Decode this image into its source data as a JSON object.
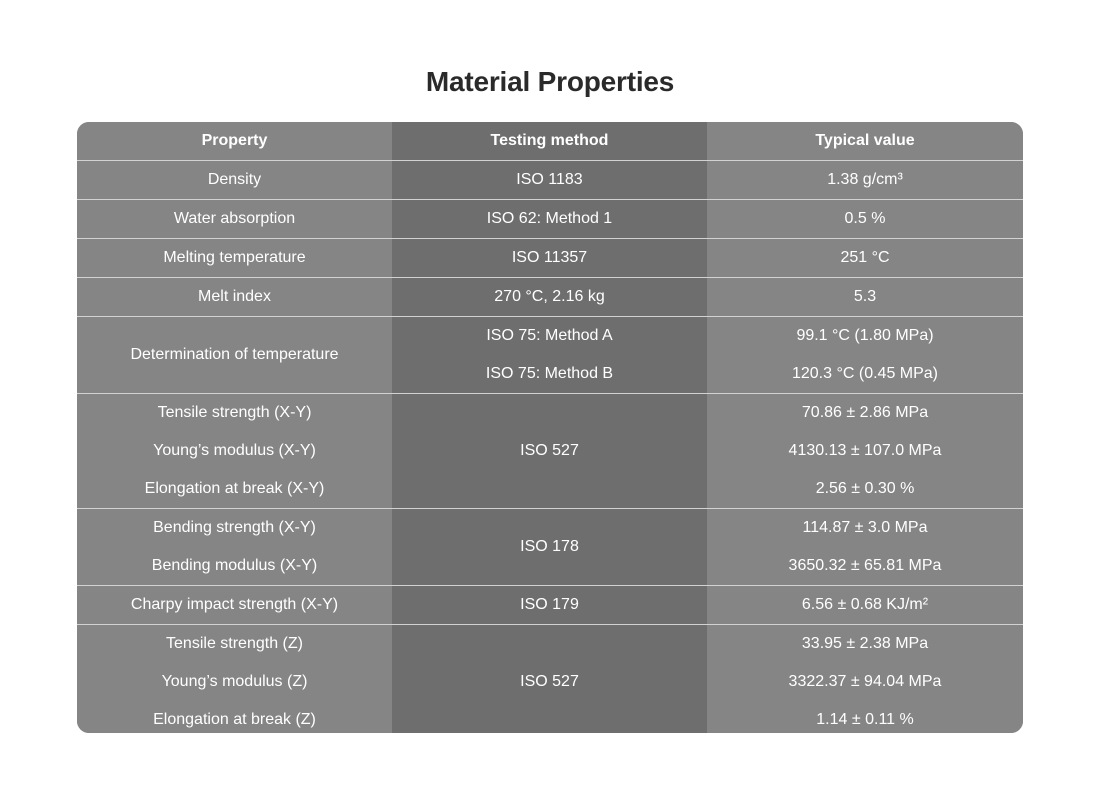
{
  "title": "Material Properties",
  "headers": {
    "property": "Property",
    "method": "Testing method",
    "value": "Typical value"
  },
  "rows": {
    "density": {
      "property": "Density",
      "method": "ISO 1183",
      "value": "1.38 g/cm³"
    },
    "water_absorption": {
      "property": "Water absorption",
      "method": "ISO 62: Method 1",
      "value": "0.5 %"
    },
    "melting_temperature": {
      "property": "Melting temperature",
      "method": "ISO 11357",
      "value": "251 °C"
    },
    "melt_index": {
      "property": "Melt index",
      "method": "270 °C, 2.16 kg",
      "value": "5.3"
    },
    "determination_temperature": {
      "property": "Determination of temperature",
      "method_a": "ISO 75: Method A",
      "value_a": "99.1 °C (1.80 MPa)",
      "method_b": "ISO 75: Method B",
      "value_b": "120.3 °C (0.45 MPa)"
    },
    "iso527_xy": {
      "method": "ISO 527",
      "tensile_property": "Tensile strength (X-Y)",
      "tensile_value": "70.86 ± 2.86 MPa",
      "youngs_property": "Young’s modulus (X-Y)",
      "youngs_value": "4130.13 ± 107.0 MPa",
      "elongation_property": "Elongation at break (X-Y)",
      "elongation_value": "2.56 ± 0.30 %"
    },
    "iso178": {
      "method": "ISO 178",
      "bending_strength_property": "Bending strength (X-Y)",
      "bending_strength_value": "114.87 ± 3.0 MPa",
      "bending_modulus_property": "Bending modulus (X-Y)",
      "bending_modulus_value": "3650.32 ± 65.81 MPa"
    },
    "charpy": {
      "property": "Charpy impact strength (X-Y)",
      "method": "ISO 179",
      "value": "6.56 ± 0.68 KJ/m²"
    },
    "iso527_z": {
      "method": "ISO 527",
      "tensile_property": "Tensile strength (Z)",
      "tensile_value": "33.95 ± 2.38 MPa",
      "youngs_property": "Young’s modulus (Z)",
      "youngs_value": "3322.37 ± 94.04 MPa",
      "elongation_property": "Elongation at break (Z)",
      "elongation_value": "1.14 ± 0.11 %"
    }
  },
  "colors": {
    "header_and_outer_columns": "#858585",
    "middle_column": "#6e6e6e",
    "separator": "#d2d2d2",
    "text": "#ffffff",
    "title": "#2a2a2a"
  }
}
